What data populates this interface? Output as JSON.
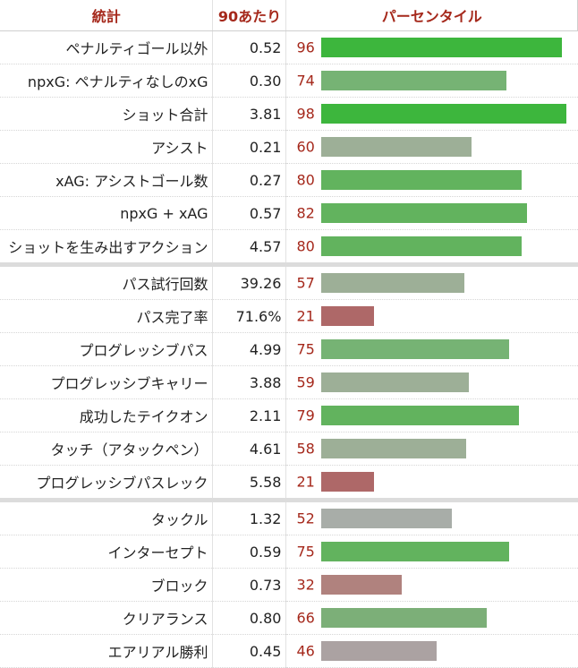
{
  "header": {
    "stat": "統計",
    "per90": "90あたり",
    "percentile": "パーセンタイル"
  },
  "chart_data": {
    "type": "bar",
    "orientation": "horizontal",
    "xlim": [
      0,
      100
    ],
    "groups": [
      {
        "rows": [
          {
            "stat": "ペナルティゴール以外",
            "per90": "0.52",
            "percentile": 96,
            "color": "#3db63d"
          },
          {
            "stat": "npxG: ペナルティなしのxG",
            "per90": "0.30",
            "percentile": 74,
            "color": "#76b374"
          },
          {
            "stat": "ショット合計",
            "per90": "3.81",
            "percentile": 98,
            "color": "#3db63d"
          },
          {
            "stat": "アシスト",
            "per90": "0.21",
            "percentile": 60,
            "color": "#9daf97"
          },
          {
            "stat": "xAG: アシストゴール数",
            "per90": "0.27",
            "percentile": 80,
            "color": "#62b35e"
          },
          {
            "stat": "npxG + xAG",
            "per90": "0.57",
            "percentile": 82,
            "color": "#62b35e"
          },
          {
            "stat": "ショットを生み出すアクション",
            "per90": "4.57",
            "percentile": 80,
            "color": "#62b35e"
          }
        ]
      },
      {
        "rows": [
          {
            "stat": "パス試行回数",
            "per90": "39.26",
            "percentile": 57,
            "color": "#9daf97"
          },
          {
            "stat": "パス完了率",
            "per90": "71.6%",
            "percentile": 21,
            "color": "#ae6868"
          },
          {
            "stat": "プログレッシブパス",
            "per90": "4.99",
            "percentile": 75,
            "color": "#76b374"
          },
          {
            "stat": "プログレッシブキャリー",
            "per90": "3.88",
            "percentile": 59,
            "color": "#9daf97"
          },
          {
            "stat": "成功したテイクオン",
            "per90": "2.11",
            "percentile": 79,
            "color": "#62b35e"
          },
          {
            "stat": "タッチ（アタックペン）",
            "per90": "4.61",
            "percentile": 58,
            "color": "#9daf97"
          },
          {
            "stat": "プログレッシブパスレック",
            "per90": "5.58",
            "percentile": 21,
            "color": "#ae6868"
          }
        ]
      },
      {
        "rows": [
          {
            "stat": "タックル",
            "per90": "1.32",
            "percentile": 52,
            "color": "#a8ada8"
          },
          {
            "stat": "インターセプト",
            "per90": "0.59",
            "percentile": 75,
            "color": "#62b35e"
          },
          {
            "stat": "ブロック",
            "per90": "0.73",
            "percentile": 32,
            "color": "#b0827e"
          },
          {
            "stat": "クリアランス",
            "per90": "0.80",
            "percentile": 66,
            "color": "#7caf78"
          },
          {
            "stat": "エアリアル勝利",
            "per90": "0.45",
            "percentile": 46,
            "color": "#aba2a2"
          }
        ]
      }
    ]
  }
}
